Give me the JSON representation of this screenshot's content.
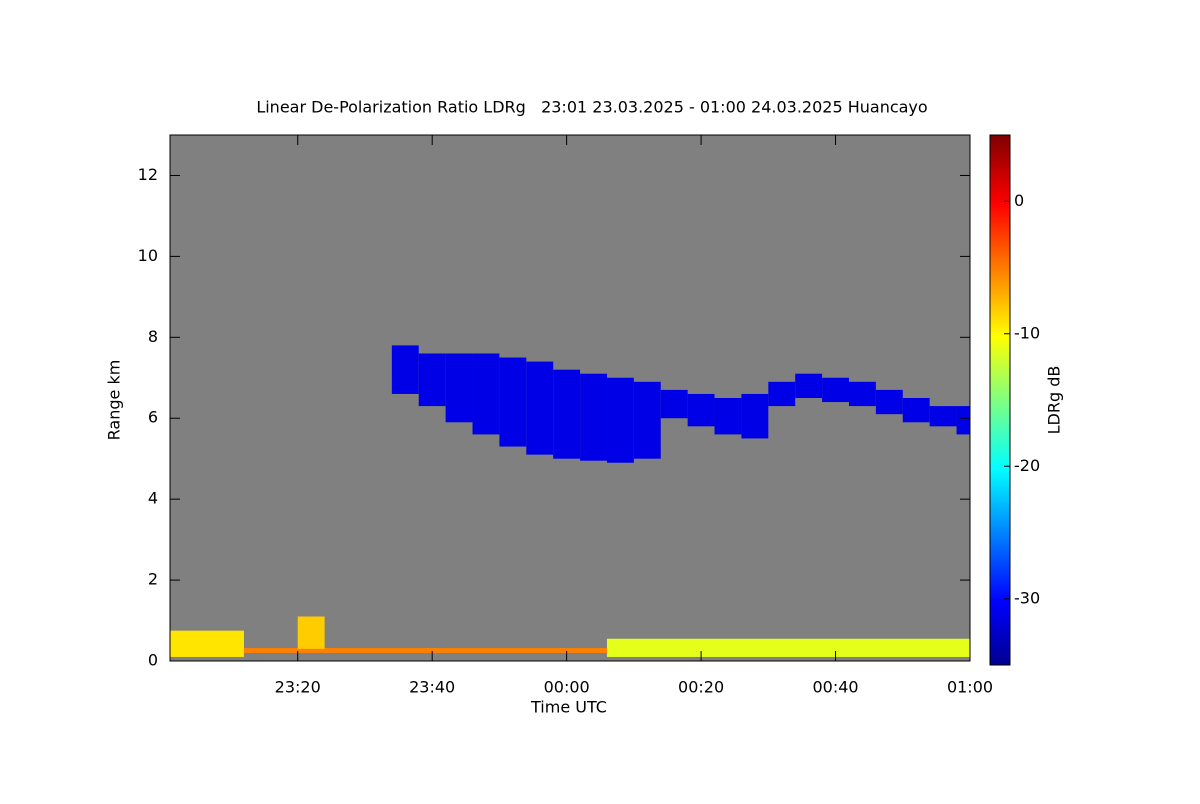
{
  "chart_data": {
    "type": "heatmap",
    "title": "Linear De-Polarization Ratio LDRg   23:01 23.03.2025 - 01:00 24.03.2025 Huancayo",
    "xlabel": "Time UTC",
    "ylabel": "Range km",
    "colorbar_label": "LDRg dB",
    "background": "#808080",
    "xlim": [
      1,
      120
    ],
    "xticks": [
      {
        "value": 20,
        "label": "23:20"
      },
      {
        "value": 40,
        "label": "23:40"
      },
      {
        "value": 60,
        "label": "00:00"
      },
      {
        "value": 80,
        "label": "00:20"
      },
      {
        "value": 100,
        "label": "00:40"
      },
      {
        "value": 120,
        "label": "01:00"
      }
    ],
    "ylim": [
      0,
      13
    ],
    "yticks": [
      0,
      2,
      4,
      6,
      8,
      10,
      12
    ],
    "zlim": [
      -35,
      5
    ],
    "zticks": [
      0,
      -10,
      -20,
      -30
    ],
    "cells": {
      "x0": [
        34,
        38,
        42,
        46,
        50,
        54,
        58,
        62,
        66,
        70,
        74,
        78,
        82,
        86,
        90,
        94,
        98,
        102,
        106,
        110,
        114,
        118,
        1,
        12,
        66,
        20
      ],
      "x1": [
        38,
        42,
        46,
        50,
        54,
        58,
        62,
        66,
        70,
        74,
        78,
        82,
        86,
        90,
        94,
        98,
        102,
        106,
        110,
        114,
        118,
        120,
        12,
        66,
        120,
        24
      ],
      "y0": [
        6.6,
        6.3,
        5.9,
        5.6,
        5.3,
        5.1,
        5.0,
        4.95,
        4.9,
        5.0,
        6.0,
        5.8,
        5.6,
        5.5,
        6.3,
        6.5,
        6.4,
        6.3,
        6.1,
        5.9,
        5.8,
        5.6,
        0.1,
        0.2,
        0.1,
        0.3
      ],
      "y1": [
        7.8,
        7.6,
        7.6,
        7.6,
        7.5,
        7.4,
        7.2,
        7.1,
        7.0,
        6.9,
        6.7,
        6.6,
        6.5,
        6.6,
        6.9,
        7.1,
        7.0,
        6.9,
        6.7,
        6.5,
        6.3,
        6.3,
        0.75,
        0.32,
        0.55,
        1.1
      ],
      "values": [
        -31,
        -31,
        -31,
        -31,
        -31,
        -31,
        -31,
        -31,
        -31,
        -31,
        -31,
        -31,
        -31,
        -31,
        -31,
        -31,
        -31,
        -31,
        -31,
        -31,
        -31,
        -31,
        -9,
        -5,
        -11,
        -8
      ]
    }
  }
}
